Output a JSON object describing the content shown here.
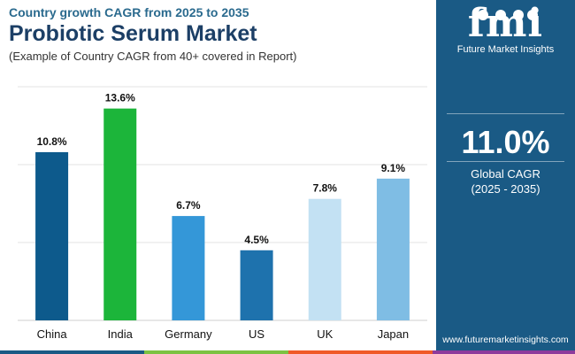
{
  "header": {
    "subtitle": "Country growth CAGR from 2025 to 2035",
    "title": "Probiotic Serum Market",
    "note": "(Example of Country CAGR from 40+ covered in Report)"
  },
  "side_panel": {
    "logo_text": "fmi",
    "logo_caption": "Future Market Insights",
    "global_value": "11.0%",
    "global_label": "Global CAGR",
    "global_period": "(2025 - 2035)",
    "website": "www.futuremarketinsights.com",
    "background_color": "#1a5a85"
  },
  "chart_data": {
    "type": "bar",
    "categories": [
      "China",
      "India",
      "Germany",
      "US",
      "UK",
      "Japan"
    ],
    "values": [
      10.8,
      13.6,
      6.7,
      4.5,
      7.8,
      9.1
    ],
    "value_labels": [
      "10.8%",
      "13.6%",
      "6.7%",
      "4.5%",
      "7.8%",
      "9.1%"
    ],
    "colors": [
      "#0d5a8c",
      "#1cb53a",
      "#3497d8",
      "#1e72ad",
      "#c3e1f3",
      "#7fbde4"
    ],
    "ylim": [
      0,
      15
    ],
    "grid": true,
    "axis_labels_visible": false
  },
  "bottom_bar_colors": [
    "#1a5a85",
    "#7cc242",
    "#f05a28",
    "#8e3b9c"
  ]
}
